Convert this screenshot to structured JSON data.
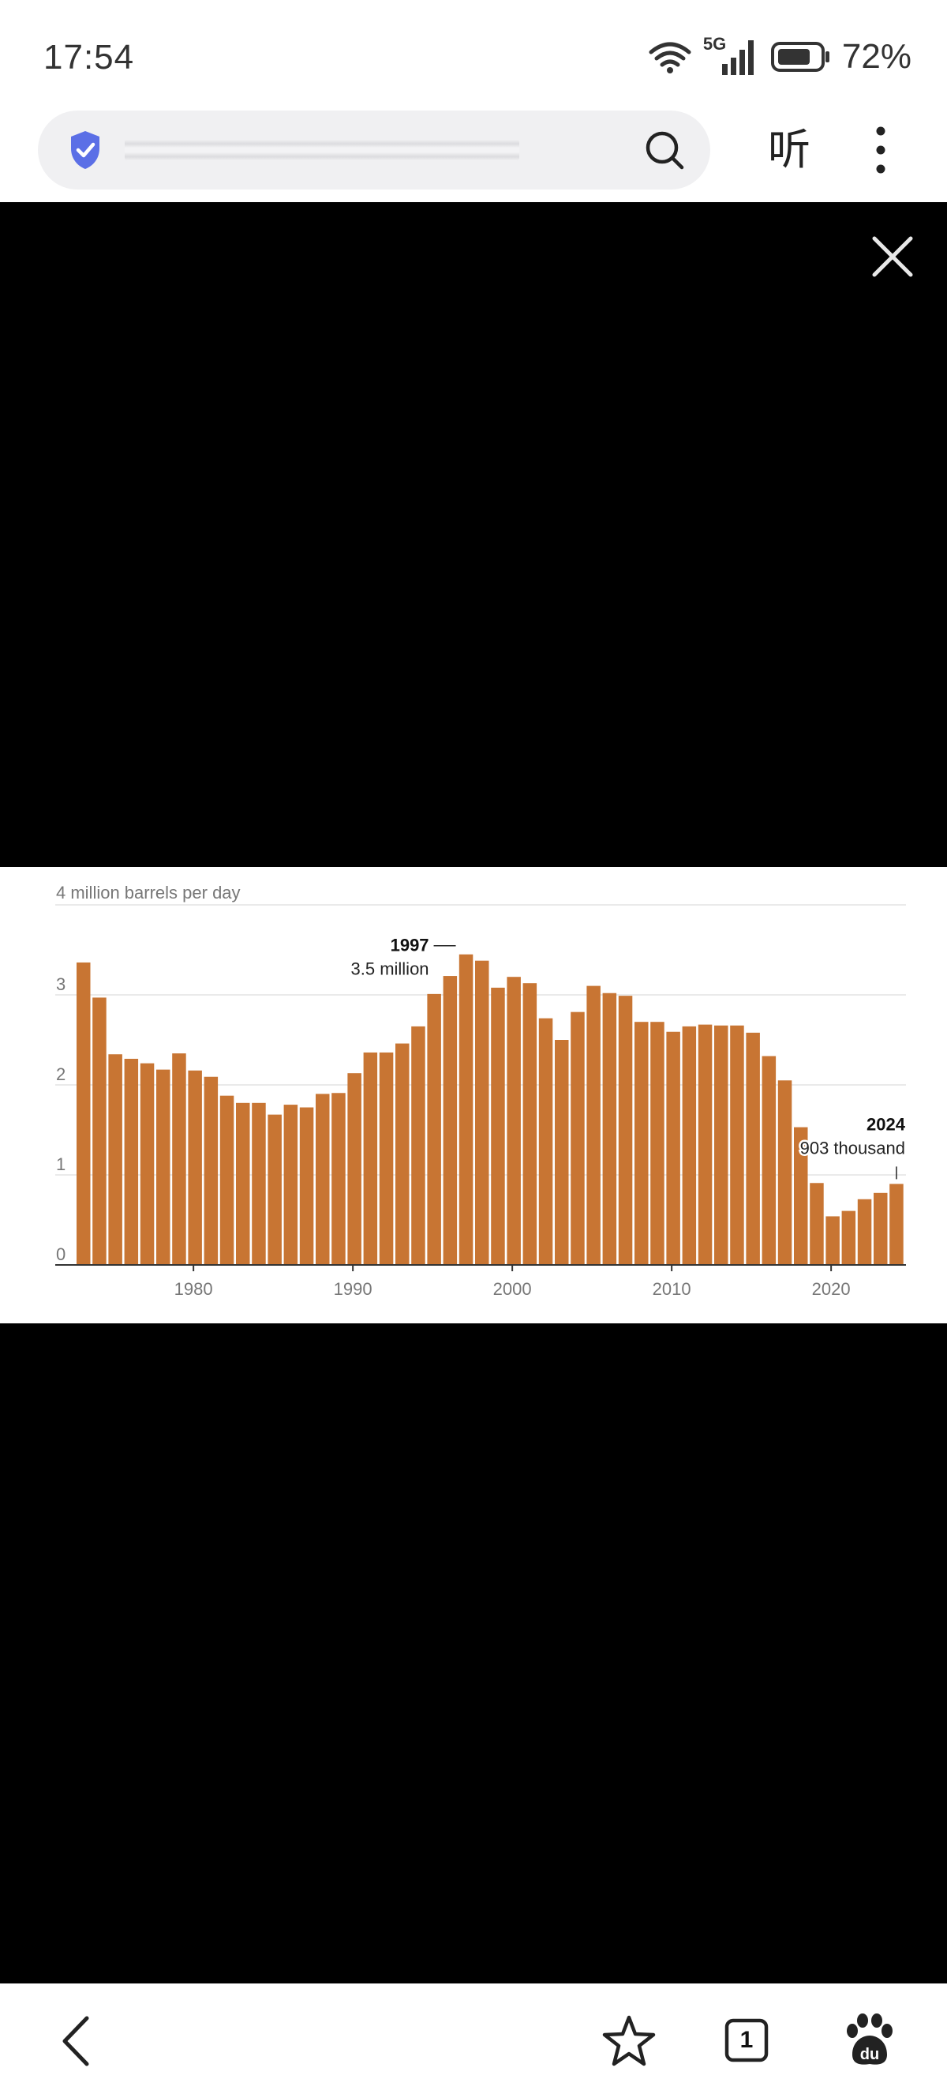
{
  "status_bar": {
    "time": "17:54",
    "network": "5G",
    "battery": "72%"
  },
  "browser": {
    "listen_label": "听",
    "icons": {
      "security": "shield-check-icon",
      "search": "search-icon",
      "more": "more-vertical-icon",
      "close": "close-icon",
      "back": "back-arrow-icon",
      "bookmark": "star-icon",
      "tabs": "tabs-icon",
      "baidu": "baidu-paw-icon"
    },
    "tab_count": "1"
  },
  "colors": {
    "bar": "#c87533",
    "accent": "#5b6fe6"
  },
  "chart_data": {
    "type": "bar",
    "unit_label": "4 million barrels per day",
    "ylim": [
      0,
      4
    ],
    "y_ticks": [
      {
        "value": 0,
        "label": "0"
      },
      {
        "value": 1,
        "label": "1"
      },
      {
        "value": 2,
        "label": "2"
      },
      {
        "value": 3,
        "label": "3"
      },
      {
        "value": 4,
        "label": "4 million barrels per day"
      }
    ],
    "x_ticks": [
      {
        "year": 1980,
        "label": "1980"
      },
      {
        "year": 1990,
        "label": "1990"
      },
      {
        "year": 2000,
        "label": "2000"
      },
      {
        "year": 2010,
        "label": "2010"
      },
      {
        "year": 2020,
        "label": "2020"
      }
    ],
    "years": [
      1973,
      1974,
      1975,
      1976,
      1977,
      1978,
      1979,
      1980,
      1981,
      1982,
      1983,
      1984,
      1985,
      1986,
      1987,
      1988,
      1989,
      1990,
      1991,
      1992,
      1993,
      1994,
      1995,
      1996,
      1997,
      1998,
      1999,
      2000,
      2001,
      2002,
      2003,
      2004,
      2005,
      2006,
      2007,
      2008,
      2009,
      2010,
      2011,
      2012,
      2013,
      2014,
      2015,
      2016,
      2017,
      2018,
      2019,
      2020,
      2021,
      2022,
      2023,
      2024
    ],
    "values": [
      3.36,
      2.97,
      2.34,
      2.29,
      2.24,
      2.17,
      2.35,
      2.16,
      2.09,
      1.88,
      1.8,
      1.8,
      1.67,
      1.78,
      1.75,
      1.9,
      1.91,
      2.13,
      2.36,
      2.36,
      2.46,
      2.65,
      3.01,
      3.21,
      3.45,
      3.38,
      3.08,
      3.2,
      3.13,
      2.74,
      2.5,
      2.81,
      3.1,
      3.02,
      2.99,
      2.7,
      2.7,
      2.59,
      2.65,
      2.67,
      2.66,
      2.66,
      2.58,
      2.32,
      2.05,
      1.53,
      0.91,
      0.54,
      0.6,
      0.73,
      0.8,
      0.9
    ],
    "annotations": [
      {
        "year": 1997,
        "label_bold": "1997",
        "label": "3.5 million"
      },
      {
        "year": 2024,
        "label_bold": "2024",
        "label": "903 thousand"
      }
    ]
  }
}
